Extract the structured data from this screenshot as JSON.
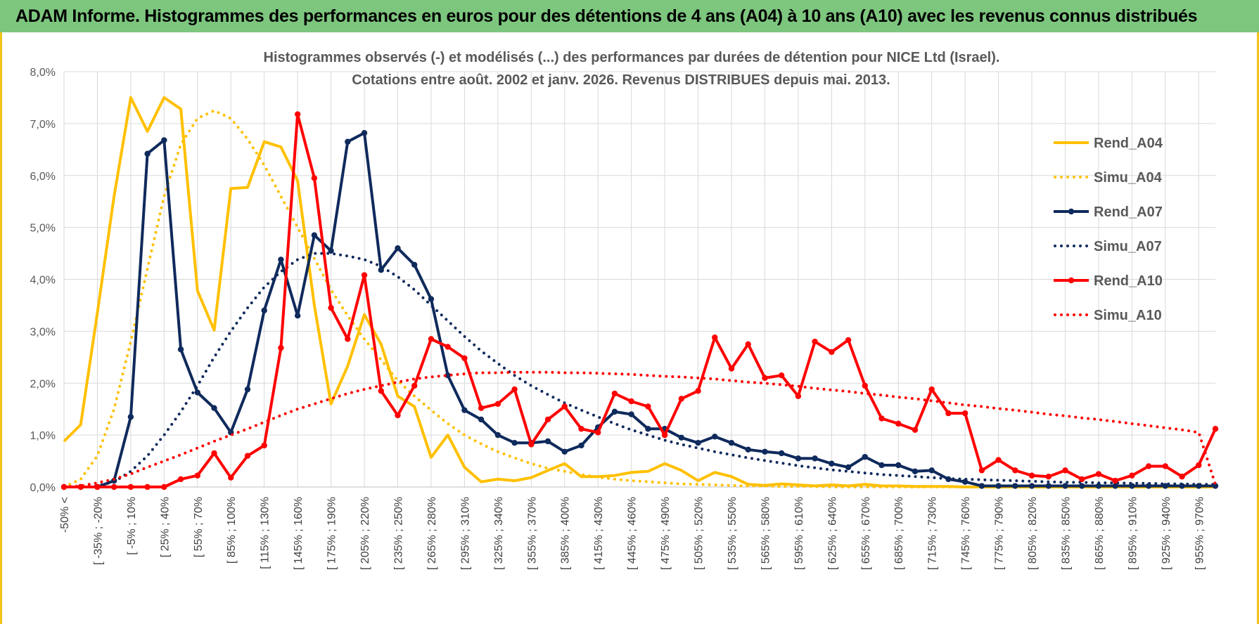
{
  "header": {
    "title": "ADAM Informe. Histogrammes des performances en euros pour des détentions de 4 ans (A04) à 10 ans (A10) avec les revenus connus distribués"
  },
  "colors": {
    "title_bg": "#7dc67e",
    "frame": "#f0c419",
    "A04": "#ffc000",
    "A07": "#0f2a5c",
    "A10": "#ff0000",
    "grid": "#d9d9d9"
  },
  "chart_data": {
    "type": "line",
    "title": "Histogrammes observés (-) et modélisés (...) des performances par durées de détention pour NICE Ltd (Israel).",
    "subtitle": "Cotations entre août. 2002 et janv. 2026. Revenus DISTRIBUES depuis mai. 2013.",
    "ylim": [
      0,
      8
    ],
    "y_ticks": [
      "0,0%",
      "1,0%",
      "2,0%",
      "3,0%",
      "4,0%",
      "5,0%",
      "6,0%",
      "7,0%",
      "8,0%"
    ],
    "x_count": 70,
    "x_tick_labels": [
      "-50% <",
      "[ -35% ; -20%",
      "[ -5% ; 10%",
      "[ 25% ; 40%",
      "[ 55% ; 70%",
      "[ 85% ; 100%",
      "[ 115% ; 130%",
      "[ 145% ; 160%",
      "[ 175% ; 190%",
      "[ 205% ; 220%",
      "[ 235% ; 250%",
      "[ 265% ; 280%",
      "[ 295% ; 310%",
      "[ 325% ; 340%",
      "[ 355% ; 370%",
      "[ 385% ; 400%",
      "[ 415% ; 430%",
      "[ 445% ; 460%",
      "[ 475% ; 490%",
      "[ 505% ; 520%",
      "[ 535% ; 550%",
      "[ 565% ; 580%",
      "[ 595% ; 610%",
      "[ 625% ; 640%",
      "[ 655% ; 670%",
      "[ 685% ; 700%",
      "[ 715% ; 730%",
      "[ 745% ; 760%",
      "[ 775% ; 790%",
      "[ 805% ; 820%",
      "[ 835% ; 850%",
      "[ 865% ; 880%",
      "[ 895% ; 910%",
      "[ 925% ; 940%",
      "[ 955% ; 970%"
    ],
    "legend_position": "right",
    "grid": true,
    "series": [
      {
        "name": "Rend_A04",
        "style": "solid",
        "markers": false,
        "color": "#ffc000",
        "values": [
          0.88,
          1.2,
          3.35,
          5.6,
          7.5,
          6.85,
          7.5,
          7.28,
          3.78,
          3.02,
          5.75,
          5.77,
          6.65,
          6.55,
          5.9,
          3.5,
          1.6,
          2.33,
          3.32,
          2.75,
          1.75,
          1.55,
          0.57,
          1.0,
          0.38,
          0.1,
          0.15,
          0.12,
          0.18,
          0.32,
          0.45,
          0.2,
          0.2,
          0.22,
          0.28,
          0.3,
          0.45,
          0.32,
          0.12,
          0.28,
          0.2,
          0.05,
          0.03,
          0.06,
          0.04,
          0.02,
          0.04,
          0.02,
          0.05,
          0.02,
          0.02,
          0.01,
          0.01,
          0.01,
          0.0,
          0.0,
          0.0,
          0.0,
          0.0,
          0.0,
          0.0,
          0.0,
          0.0,
          0.0,
          0.0,
          0.0,
          0.0,
          0.0,
          0.0,
          0.0
        ]
      },
      {
        "name": "Simu_A04",
        "style": "dotted",
        "markers": false,
        "color": "#ffc000",
        "values": [
          0.0,
          0.15,
          0.6,
          1.5,
          2.8,
          4.2,
          5.6,
          6.6,
          7.1,
          7.25,
          7.1,
          6.7,
          6.2,
          5.6,
          5.0,
          4.4,
          3.8,
          3.3,
          2.85,
          2.45,
          2.05,
          1.75,
          1.48,
          1.22,
          1.0,
          0.83,
          0.68,
          0.56,
          0.45,
          0.36,
          0.3,
          0.24,
          0.19,
          0.15,
          0.12,
          0.1,
          0.08,
          0.06,
          0.05,
          0.04,
          0.03,
          0.02,
          0.02,
          0.01,
          0.01,
          0.01,
          0.0,
          0.0,
          0.0,
          0.0,
          0.0,
          0.0,
          0.0,
          0.0,
          0.0,
          0.0,
          0.0,
          0.0,
          0.0,
          0.0,
          0.0,
          0.0,
          0.0,
          0.0,
          0.0,
          0.0,
          0.0,
          0.0,
          0.0,
          0.0
        ]
      },
      {
        "name": "Rend_A07",
        "style": "solid",
        "markers": true,
        "color": "#0f2a5c",
        "values": [
          0.0,
          0.0,
          0.0,
          0.12,
          1.35,
          6.42,
          6.68,
          2.65,
          1.82,
          1.52,
          1.05,
          1.88,
          3.4,
          4.38,
          3.3,
          4.85,
          4.55,
          6.65,
          6.82,
          4.18,
          4.6,
          4.28,
          3.62,
          2.15,
          1.48,
          1.3,
          1.0,
          0.85,
          0.85,
          0.88,
          0.68,
          0.8,
          1.15,
          1.45,
          1.4,
          1.12,
          1.12,
          0.95,
          0.85,
          0.97,
          0.85,
          0.72,
          0.68,
          0.65,
          0.55,
          0.55,
          0.45,
          0.38,
          0.58,
          0.42,
          0.42,
          0.3,
          0.32,
          0.15,
          0.1,
          0.02,
          0.02,
          0.02,
          0.02,
          0.02,
          0.02,
          0.02,
          0.02,
          0.02,
          0.02,
          0.02,
          0.02,
          0.02,
          0.02,
          0.02
        ]
      },
      {
        "name": "Simu_A07",
        "style": "dotted",
        "markers": false,
        "color": "#0f2a5c",
        "values": [
          0.0,
          0.0,
          0.02,
          0.1,
          0.3,
          0.6,
          1.0,
          1.45,
          1.95,
          2.5,
          3.0,
          3.45,
          3.85,
          4.15,
          4.38,
          4.5,
          4.5,
          4.45,
          4.38,
          4.25,
          4.05,
          3.8,
          3.5,
          3.2,
          2.9,
          2.62,
          2.38,
          2.15,
          1.95,
          1.78,
          1.62,
          1.48,
          1.35,
          1.22,
          1.1,
          1.0,
          0.9,
          0.82,
          0.75,
          0.68,
          0.62,
          0.56,
          0.51,
          0.46,
          0.41,
          0.37,
          0.33,
          0.3,
          0.27,
          0.24,
          0.22,
          0.2,
          0.18,
          0.16,
          0.15,
          0.14,
          0.13,
          0.12,
          0.11,
          0.1,
          0.09,
          0.09,
          0.08,
          0.08,
          0.07,
          0.07,
          0.06,
          0.06,
          0.05,
          0.05
        ]
      },
      {
        "name": "Rend_A10",
        "style": "solid",
        "markers": true,
        "color": "#ff0000",
        "values": [
          0.0,
          0.0,
          0.0,
          0.0,
          0.0,
          0.0,
          0.0,
          0.15,
          0.22,
          0.65,
          0.18,
          0.6,
          0.8,
          2.68,
          7.18,
          5.95,
          3.45,
          2.85,
          4.08,
          1.85,
          1.38,
          1.95,
          2.85,
          2.7,
          2.48,
          1.52,
          1.6,
          1.88,
          0.82,
          1.3,
          1.55,
          1.12,
          1.05,
          1.8,
          1.65,
          1.55,
          1.0,
          1.7,
          1.85,
          2.88,
          2.28,
          2.75,
          2.1,
          2.15,
          1.75,
          2.8,
          2.6,
          2.83,
          1.95,
          1.32,
          1.22,
          1.1,
          1.88,
          1.42,
          1.42,
          0.32,
          0.52,
          0.32,
          0.22,
          0.2,
          0.32,
          0.15,
          0.25,
          0.12,
          0.22,
          0.4,
          0.4,
          0.2,
          0.42,
          1.12
        ]
      },
      {
        "name": "Simu_A10",
        "style": "dotted",
        "markers": false,
        "color": "#ff0000",
        "values": [
          0.0,
          0.02,
          0.08,
          0.15,
          0.25,
          0.38,
          0.5,
          0.62,
          0.75,
          0.88,
          1.0,
          1.12,
          1.25,
          1.38,
          1.5,
          1.6,
          1.7,
          1.8,
          1.88,
          1.95,
          2.02,
          2.08,
          2.12,
          2.15,
          2.18,
          2.2,
          2.2,
          2.21,
          2.21,
          2.21,
          2.2,
          2.2,
          2.19,
          2.18,
          2.17,
          2.15,
          2.13,
          2.12,
          2.1,
          2.08,
          2.05,
          2.02,
          2.0,
          1.97,
          1.94,
          1.9,
          1.87,
          1.84,
          1.8,
          1.77,
          1.73,
          1.7,
          1.66,
          1.62,
          1.58,
          1.55,
          1.51,
          1.48,
          1.44,
          1.4,
          1.37,
          1.33,
          1.3,
          1.26,
          1.22,
          1.18,
          1.14,
          1.1,
          1.05,
          0.05
        ]
      }
    ]
  }
}
